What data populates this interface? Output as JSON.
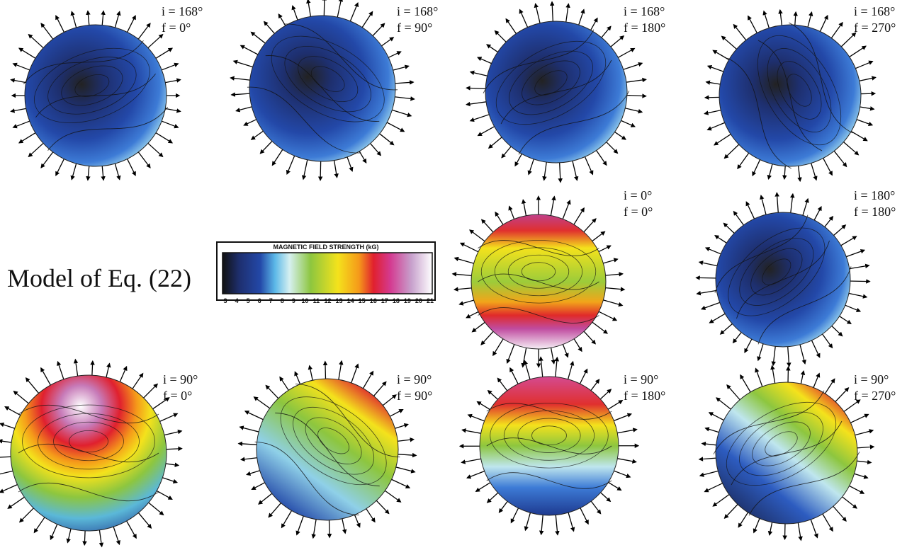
{
  "figure": {
    "label": "Model of Eq. (22)",
    "colorbar": {
      "title": "MAGNETIC FIELD STRENGTH (kG)",
      "ticks": [
        3,
        4,
        5,
        6,
        7,
        8,
        9,
        10,
        11,
        12,
        13,
        14,
        15,
        16,
        17,
        18,
        19,
        20,
        21
      ]
    },
    "panels": [
      {
        "i": "i = 168°",
        "f": "f = 0°"
      },
      {
        "i": "i = 168°",
        "f": "f = 90°"
      },
      {
        "i": "i = 168°",
        "f": "f = 180°"
      },
      {
        "i": "i = 168°",
        "f": "f = 270°"
      },
      {
        "i": "i = 0°",
        "f": "f = 0°"
      },
      {
        "i": "i = 180°",
        "f": "f = 180°"
      },
      {
        "i": "i = 90°",
        "f": "f = 0°"
      },
      {
        "i": "i = 90°",
        "f": "f = 90°"
      },
      {
        "i": "i = 90°",
        "f": "f = 180°"
      },
      {
        "i": "i = 90°",
        "f": "f = 270°"
      }
    ]
  }
}
